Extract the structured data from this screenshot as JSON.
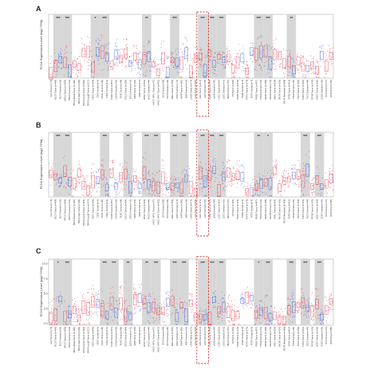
{
  "chart_data": [
    {
      "type": "scatter",
      "panel": "A",
      "ylabel": "FCN1 Expression Level (log2 TPM)",
      "yticks": [],
      "categories": [
        "ACC.Tumor (n=79)",
        "BLCA.Tumor (n=408)",
        "BLCA.Normal (n=19)",
        "BRCA.Tumor (n=1093)",
        "BRCA.Normal (n=112)",
        "BRCA-Basal.Tumor (n=190)",
        "BRCA-Her2.Tumor (n=82)",
        "BRCA-LumA.Tumor (n=564)",
        "BRCA-LumB.Tumor (n=217)",
        "CESC.Tumor (n=304)",
        "CESC.Normal (n=3)",
        "CHOL.Tumor (n=36)",
        "CHOL.Normal (n=9)",
        "COAD.Tumor (n=457)",
        "COAD.Normal (n=41)",
        "DLBC.Tumor (n=48)",
        "ESCA.Tumor (n=184)",
        "ESCA.Normal (n=11)",
        "GBM.Tumor (n=153)",
        "GBM.Normal (n=5)",
        "HNSC.Tumor (n=520)",
        "HNSC.Normal (n=44)",
        "HNSC-HPV+.Tumor (n=97)",
        "HNSC-HPV-.Tumor (n=421)",
        "KICH.Tumor (n=66)",
        "KICH.Normal (n=25)",
        "KIRC.Tumor (n=533)",
        "KIRC.Normal (n=72)",
        "KIRP.Tumor (n=290)",
        "KIRP.Normal (n=32)",
        "LAML.Tumor (n=173)",
        "LGG.Tumor (n=516)",
        "LIHC.Tumor (n=371)",
        "LIHC.Normal (n=50)",
        "LUAD.Tumor (n=515)",
        "LUAD.Normal (n=59)",
        "LUSC.Tumor (n=501)",
        "LUSC.Normal (n=51)",
        "MESO.Tumor (n=87)",
        "OV.Tumor (n=303)",
        "PAAD.Tumor (n=178)",
        "PAAD.Normal (n=4)",
        "PCPG.Tumor (n=179)",
        "PCPG.Normal (n=3)",
        "PRAD.Tumor (n=497)",
        "PRAD.Normal (n=52)",
        "READ.Tumor (n=166)",
        "READ.Normal (n=10)",
        "SARC.Tumor (n=259)",
        "SKCM.Tumor (n=103)",
        "SKCM.Metastasis (n=368)",
        "STAD.Tumor (n=415)",
        "STAD.Normal (n=35)",
        "TGCT.Tumor (n=150)",
        "THCA.Tumor (n=501)",
        "THCA.Normal (n=59)",
        "THYM.Tumor (n=120)",
        "UCEC.Tumor (n=545)",
        "UCEC.Normal (n=35)",
        "UCS.Tumor (n=57)",
        "UVM.Tumor (n=80)"
      ],
      "stars": [
        {
          "pair": 1,
          "label": "***"
        },
        {
          "pair": 3,
          "label": "***"
        },
        {
          "pair": 9,
          "label": "*"
        },
        {
          "pair": 11,
          "label": "***"
        },
        {
          "pair": 20,
          "label": "**"
        },
        {
          "pair": 26,
          "label": "***"
        },
        {
          "pair": 32,
          "label": "***"
        },
        {
          "pair": 34,
          "label": "***"
        },
        {
          "pair": 36,
          "label": "***"
        },
        {
          "pair": 44,
          "label": "***"
        },
        {
          "pair": 46,
          "label": "***"
        },
        {
          "pair": 51,
          "label": "**"
        }
      ],
      "highlight": "LIHC",
      "colors": {
        "tumor": "#e8344a",
        "normal": "#3b5bd9",
        "shade": "#d7d7d7",
        "highlight": "#d83a3a"
      }
    },
    {
      "type": "scatter",
      "panel": "B",
      "ylabel": "FCN2 Expression Level (log2 TPM)",
      "yticks": [],
      "categories": [
        "ACC.Tumor (n=79)",
        "BLCA.Tumor (n=408)",
        "BLCA.Normal (n=19)",
        "BRCA.Tumor (n=1093)",
        "BRCA.Normal (n=112)",
        "BRCA-Basal.Tumor (n=190)",
        "BRCA-Her2.Tumor (n=82)",
        "BRCA-LumA.Tumor (n=564)",
        "BRCA-LumB.Tumor (n=217)",
        "CESC.Tumor (n=304)",
        "CESC.Normal (n=3)",
        "CHOL.Tumor (n=36)",
        "CHOL.Normal (n=9)",
        "COAD.Tumor (n=457)",
        "COAD.Normal (n=41)",
        "DLBC.Tumor (n=48)",
        "ESCA.Tumor (n=184)",
        "ESCA.Normal (n=11)",
        "GBM.Tumor (n=153)",
        "GBM.Normal (n=5)",
        "HNSC.Tumor (n=520)",
        "HNSC.Normal (n=44)",
        "HNSC-HPV+.Tumor (n=97)",
        "HNSC-HPV-.Tumor (n=421)",
        "KICH.Tumor (n=66)",
        "KICH.Normal (n=25)",
        "KIRC.Tumor (n=533)",
        "KIRC.Normal (n=72)",
        "KIRP.Tumor (n=290)",
        "KIRP.Normal (n=32)",
        "LAML.Tumor (n=173)",
        "LGG.Tumor (n=516)",
        "LIHC.Tumor (n=371)",
        "LIHC.Normal (n=50)",
        "LUAD.Tumor (n=515)",
        "LUAD.Normal (n=59)",
        "LUSC.Tumor (n=501)",
        "LUSC.Normal (n=51)",
        "MESO.Tumor (n=87)",
        "OV.Tumor (n=303)",
        "PAAD.Tumor (n=178)",
        "PAAD.Normal (n=4)",
        "PCPG.Tumor (n=179)",
        "PCPG.Normal (n=3)",
        "PRAD.Tumor (n=497)",
        "PRAD.Normal (n=52)",
        "READ.Tumor (n=166)",
        "READ.Normal (n=10)",
        "SARC.Tumor (n=259)",
        "SKCM.Tumor (n=103)",
        "SKCM.Metastasis (n=368)",
        "STAD.Tumor (n=415)",
        "STAD.Normal (n=35)",
        "TGCT.Tumor (n=150)",
        "THCA.Tumor (n=501)",
        "THCA.Normal (n=59)",
        "THYM.Tumor (n=120)",
        "UCEC.Tumor (n=545)",
        "UCEC.Normal (n=35)",
        "UCS.Tumor (n=57)",
        "UVM.Tumor (n=80)"
      ],
      "stars": [
        {
          "pair": 1,
          "label": "***"
        },
        {
          "pair": 3,
          "label": "***"
        },
        {
          "pair": 11,
          "label": "***"
        },
        {
          "pair": 16,
          "label": "**"
        },
        {
          "pair": 20,
          "label": "***"
        },
        {
          "pair": 22,
          "label": "***"
        },
        {
          "pair": 26,
          "label": "***"
        },
        {
          "pair": 28,
          "label": "***"
        },
        {
          "pair": 32,
          "label": "***"
        },
        {
          "pair": 34,
          "label": "***"
        },
        {
          "pair": 36,
          "label": "***"
        },
        {
          "pair": 44,
          "label": "**"
        },
        {
          "pair": 46,
          "label": "*"
        },
        {
          "pair": 54,
          "label": "***"
        },
        {
          "pair": 57,
          "label": "***"
        }
      ],
      "highlight": "LIHC",
      "colors": {
        "tumor": "#e8344a",
        "normal": "#3b5bd9",
        "shade": "#d7d7d7",
        "highlight": "#d83a3a"
      }
    },
    {
      "type": "scatter",
      "panel": "C",
      "ylabel": "FCN3 Expression Level (log2 TPM)",
      "yticks": [
        "10.0",
        "7.5",
        "5.0",
        "2.5",
        "0.0"
      ],
      "ylim": [
        0,
        10
      ],
      "categories": [
        "ACC.Tumor (n=79)",
        "BLCA.Tumor (n=408)",
        "BLCA.Normal (n=19)",
        "BRCA.Tumor (n=1093)",
        "BRCA.Normal (n=112)",
        "BRCA-Basal.Tumor (n=190)",
        "BRCA-Her2.Tumor (n=82)",
        "BRCA-LumA.Tumor (n=564)",
        "BRCA-LumB.Tumor (n=217)",
        "CESC.Tumor (n=304)",
        "CESC.Normal (n=3)",
        "CHOL.Tumor (n=36)",
        "CHOL.Normal (n=9)",
        "COAD.Tumor (n=457)",
        "COAD.Normal (n=41)",
        "DLBC.Tumor (n=48)",
        "ESCA.Tumor (n=184)",
        "ESCA.Normal (n=11)",
        "GBM.Tumor (n=153)",
        "GBM.Normal (n=5)",
        "HNSC.Tumor (n=520)",
        "HNSC.Normal (n=44)",
        "HNSC-HPV+.Tumor (n=97)",
        "HNSC-HPV-.Tumor (n=421)",
        "KICH.Tumor (n=66)",
        "KICH.Normal (n=25)",
        "KIRC.Tumor (n=533)",
        "KIRC.Normal (n=72)",
        "KIRP.Tumor (n=290)",
        "KIRP.Normal (n=32)",
        "LAML.Tumor (n=173)",
        "LGG.Tumor (n=516)",
        "LIHC.Tumor (n=371)",
        "LIHC.Normal (n=50)",
        "LUAD.Tumor (n=515)",
        "LUAD.Normal (n=59)",
        "LUSC.Tumor (n=501)",
        "LUSC.Normal (n=51)",
        "MESO.Tumor (n=87)",
        "OV.Tumor (n=303)",
        "PAAD.Tumor (n=178)",
        "PAAD.Normal (n=4)",
        "PCPG.Tumor (n=179)",
        "PCPG.Normal (n=3)",
        "PRAD.Tumor (n=497)",
        "PRAD.Normal (n=52)",
        "READ.Tumor (n=166)",
        "READ.Normal (n=10)",
        "SARC.Tumor (n=259)",
        "SKCM.Tumor (n=103)",
        "SKCM.Metastasis (n=368)",
        "STAD.Tumor (n=415)",
        "STAD.Normal (n=35)",
        "TGCT.Tumor (n=150)",
        "THCA.Tumor (n=501)",
        "THCA.Normal (n=59)",
        "THYM.Tumor (n=120)",
        "UCEC.Tumor (n=545)",
        "UCEC.Normal (n=35)",
        "UCS.Tumor (n=57)",
        "UVM.Tumor (n=80)"
      ],
      "stars": [
        {
          "pair": 1,
          "label": "*"
        },
        {
          "pair": 3,
          "label": "***"
        },
        {
          "pair": 11,
          "label": "***"
        },
        {
          "pair": 13,
          "label": "***"
        },
        {
          "pair": 16,
          "label": "**"
        },
        {
          "pair": 20,
          "label": "**"
        },
        {
          "pair": 22,
          "label": "***"
        },
        {
          "pair": 26,
          "label": "***"
        },
        {
          "pair": 28,
          "label": "***"
        },
        {
          "pair": 32,
          "label": "***"
        },
        {
          "pair": 34,
          "label": "***"
        },
        {
          "pair": 36,
          "label": "***"
        },
        {
          "pair": 44,
          "label": "*"
        },
        {
          "pair": 46,
          "label": "***"
        },
        {
          "pair": 51,
          "label": "***"
        },
        {
          "pair": 54,
          "label": "***"
        },
        {
          "pair": 57,
          "label": "***"
        }
      ],
      "highlight": "LIHC",
      "colors": {
        "tumor": "#e8344a",
        "normal": "#3b5bd9",
        "shade": "#d7d7d7",
        "highlight": "#d83a3a"
      }
    }
  ]
}
